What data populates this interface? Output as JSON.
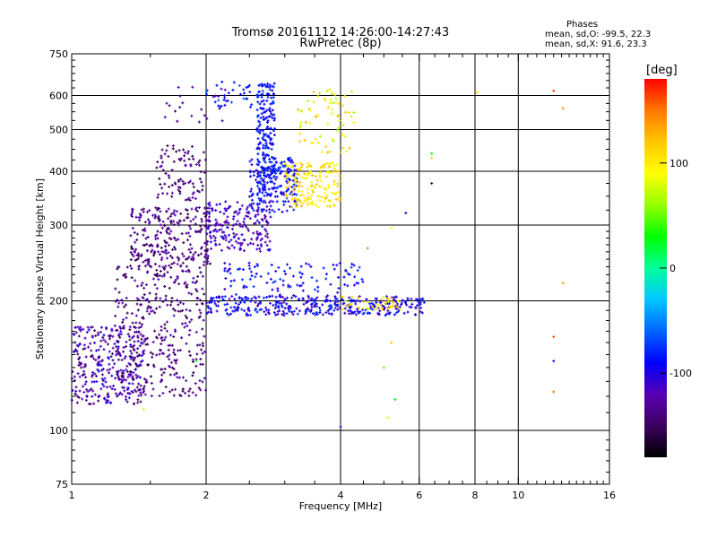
{
  "chart_data": {
    "type": "scatter",
    "title": "Tromsø 20161112 14:26:00-14:27:43",
    "subtitle": "RwPretec (8p)",
    "xlabel": "Frequency [MHz]",
    "ylabel": "Stationary phase Virtual Height [km]",
    "xscale": "log",
    "yscale": "log",
    "xlim": [
      1,
      16
    ],
    "ylim": [
      75,
      750
    ],
    "x_ticks": [
      1,
      2,
      4,
      6,
      8,
      10,
      16
    ],
    "y_ticks": [
      75,
      100,
      200,
      300,
      400,
      500,
      600,
      750
    ],
    "grid": true,
    "stats": {
      "heading": "Phases",
      "line_o": "mean, sd,O: -99.5, 22.3",
      "line_x": "mean, sd,X:  91.6, 23.3"
    },
    "colorbar": {
      "label": "[deg]",
      "range": [
        -180,
        180
      ],
      "ticks": [
        100,
        0,
        -100
      ],
      "colors": [
        "#000000",
        "#3c0060",
        "#5a00b4",
        "#0000ff",
        "#0064ff",
        "#00c8ff",
        "#00ff9a",
        "#00ff00",
        "#96ff00",
        "#ffff00",
        "#ffc800",
        "#ff7800",
        "#ff0000"
      ]
    },
    "clusters": [
      {
        "f_min": 1.0,
        "f_max": 1.45,
        "h_min": 115,
        "h_max": 175,
        "phase_min": -150,
        "phase_max": -95,
        "count": 320
      },
      {
        "f_min": 1.25,
        "f_max": 2.0,
        "h_min": 120,
        "h_max": 240,
        "phase_min": -160,
        "phase_max": -110,
        "count": 360
      },
      {
        "f_min": 1.35,
        "f_max": 2.05,
        "h_min": 240,
        "h_max": 330,
        "phase_min": -160,
        "phase_max": -115,
        "count": 260
      },
      {
        "f_min": 1.55,
        "f_max": 2.0,
        "h_min": 340,
        "h_max": 460,
        "phase_min": -160,
        "phase_max": -115,
        "count": 90
      },
      {
        "f_min": 1.6,
        "f_max": 2.3,
        "h_min": 520,
        "h_max": 640,
        "phase_min": -140,
        "phase_max": -110,
        "count": 25
      },
      {
        "f_min": 2.0,
        "f_max": 2.8,
        "h_min": 260,
        "h_max": 340,
        "phase_min": -130,
        "phase_max": -95,
        "count": 200
      },
      {
        "f_min": 2.5,
        "f_max": 3.2,
        "h_min": 320,
        "h_max": 430,
        "phase_min": -110,
        "phase_max": -70,
        "count": 170
      },
      {
        "f_min": 2.6,
        "f_max": 2.85,
        "h_min": 350,
        "h_max": 640,
        "phase_min": -100,
        "phase_max": -75,
        "count": 200
      },
      {
        "f_min": 3.0,
        "f_max": 4.0,
        "h_min": 330,
        "h_max": 420,
        "phase_min": 85,
        "phase_max": 130,
        "count": 160
      },
      {
        "f_min": 3.2,
        "f_max": 4.3,
        "h_min": 440,
        "h_max": 620,
        "phase_min": 60,
        "phase_max": 130,
        "count": 70
      },
      {
        "f_min": 2.0,
        "f_max": 6.2,
        "h_min": 185,
        "h_max": 205,
        "phase_min": -120,
        "phase_max": -70,
        "count": 360
      },
      {
        "f_min": 2.2,
        "f_max": 4.5,
        "h_min": 205,
        "h_max": 245,
        "phase_min": -110,
        "phase_max": -70,
        "count": 110
      },
      {
        "f_min": 4.0,
        "f_max": 5.5,
        "h_min": 190,
        "h_max": 205,
        "phase_min": 60,
        "phase_max": 150,
        "count": 40
      },
      {
        "f_min": 2.0,
        "f_max": 2.8,
        "h_min": 560,
        "h_max": 650,
        "phase_min": -95,
        "phase_max": -60,
        "count": 40
      }
    ],
    "isolated_points": [
      {
        "f": 12.0,
        "h": 615,
        "phase": 165
      },
      {
        "f": 12.6,
        "h": 560,
        "phase": 140
      },
      {
        "f": 12.6,
        "h": 220,
        "phase": 130
      },
      {
        "f": 12.0,
        "h": 165,
        "phase": 160
      },
      {
        "f": 12.0,
        "h": 145,
        "phase": -110
      },
      {
        "f": 12.0,
        "h": 123,
        "phase": 150
      },
      {
        "f": 8.1,
        "h": 610,
        "phase": 110
      },
      {
        "f": 6.4,
        "h": 440,
        "phase": 20
      },
      {
        "f": 6.4,
        "h": 430,
        "phase": 110
      },
      {
        "f": 6.4,
        "h": 375,
        "phase": -150
      },
      {
        "f": 5.6,
        "h": 320,
        "phase": -110
      },
      {
        "f": 5.2,
        "h": 295,
        "phase": 90
      },
      {
        "f": 4.6,
        "h": 265,
        "phase": 150
      },
      {
        "f": 5.2,
        "h": 160,
        "phase": 120
      },
      {
        "f": 5.0,
        "h": 140,
        "phase": 50
      },
      {
        "f": 5.3,
        "h": 118,
        "phase": 30
      },
      {
        "f": 5.1,
        "h": 107,
        "phase": 100
      },
      {
        "f": 4.0,
        "h": 102,
        "phase": -100
      },
      {
        "f": 1.9,
        "h": 145,
        "phase": 20
      },
      {
        "f": 1.45,
        "h": 112,
        "phase": 100
      }
    ]
  }
}
